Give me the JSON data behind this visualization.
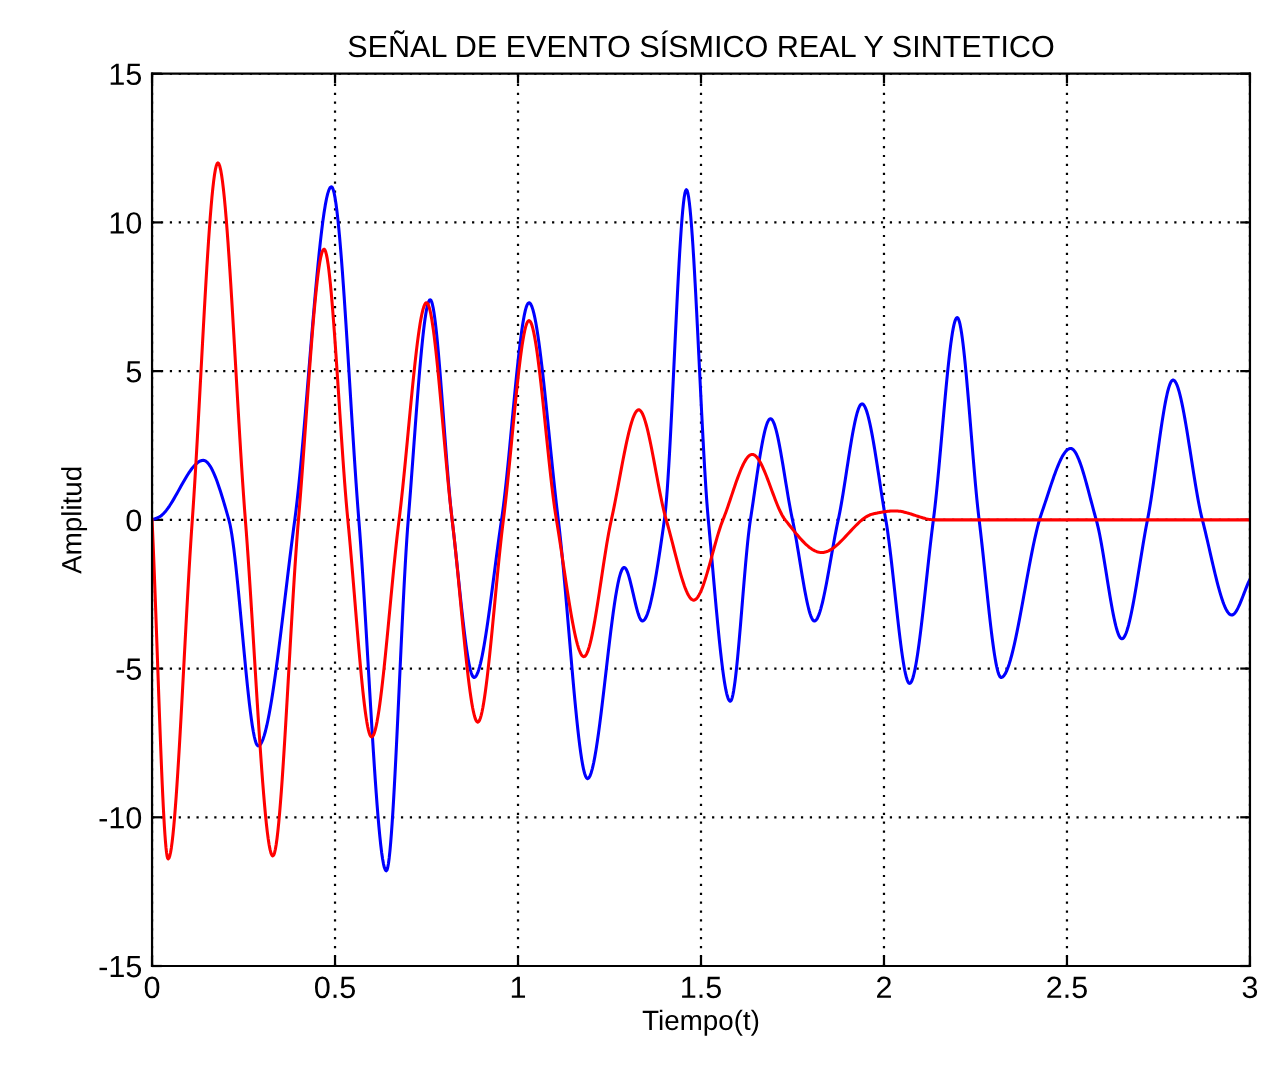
{
  "chart_data": {
    "type": "line",
    "title": "SEÑAL DE EVENTO SÍSMICO REAL Y SINTETICO",
    "xlabel": "Tiempo(t)",
    "ylabel": "Amplitud",
    "xlim": [
      0,
      3
    ],
    "ylim": [
      -15,
      15
    ],
    "xticks": [
      0,
      0.5,
      1,
      1.5,
      2,
      2.5,
      3
    ],
    "yticks": [
      -15,
      -10,
      -5,
      0,
      5,
      10,
      15
    ],
    "grid": true,
    "legend": false,
    "marker": "none",
    "line_style": "solid",
    "series": [
      {
        "color": "#0000ff",
        "x": [
          0,
          0.02,
          0.14,
          0.21,
          0.29,
          0.39,
          0.49,
          0.565,
          0.64,
          0.7,
          0.76,
          0.82,
          0.88,
          0.955,
          1.03,
          1.11,
          1.19,
          1.29,
          1.34,
          1.4,
          1.46,
          1.52,
          1.58,
          1.635,
          1.69,
          1.75,
          1.81,
          1.875,
          1.94,
          2.005,
          2.07,
          2.135,
          2.2,
          2.26,
          2.32,
          2.43,
          2.51,
          2.58,
          2.65,
          2.72,
          2.79,
          2.87,
          2.95,
          3.0
        ],
        "values": [
          0,
          0.1,
          2.0,
          0,
          -7.6,
          0,
          11.2,
          0,
          -11.8,
          0,
          7.4,
          0,
          -5.3,
          0,
          7.3,
          0,
          -8.7,
          -1.6,
          -3.4,
          0,
          11.1,
          0,
          -6.1,
          0,
          3.4,
          0,
          -3.4,
          0,
          3.9,
          0,
          -5.5,
          0,
          6.8,
          0,
          -5.3,
          0.2,
          2.4,
          0,
          -4.0,
          0,
          4.7,
          0,
          -3.2,
          -2.0
        ]
      },
      {
        "color": "#ff0000",
        "x": [
          0,
          0.044,
          0.11,
          0.18,
          0.255,
          0.33,
          0.4,
          0.47,
          0.535,
          0.6,
          0.675,
          0.75,
          0.82,
          0.89,
          0.96,
          1.03,
          1.105,
          1.18,
          1.255,
          1.33,
          1.405,
          1.48,
          1.56,
          1.64,
          1.73,
          1.83,
          1.97,
          2.03,
          2.14,
          3.0
        ],
        "values": [
          0,
          -11.4,
          0,
          12.0,
          0,
          -11.3,
          0,
          9.1,
          0,
          -7.3,
          0,
          7.3,
          0,
          -6.8,
          0,
          6.7,
          0,
          -4.6,
          0,
          3.7,
          0,
          -2.7,
          0,
          2.2,
          0,
          -1.1,
          0.2,
          0.3,
          0,
          0
        ]
      }
    ]
  }
}
